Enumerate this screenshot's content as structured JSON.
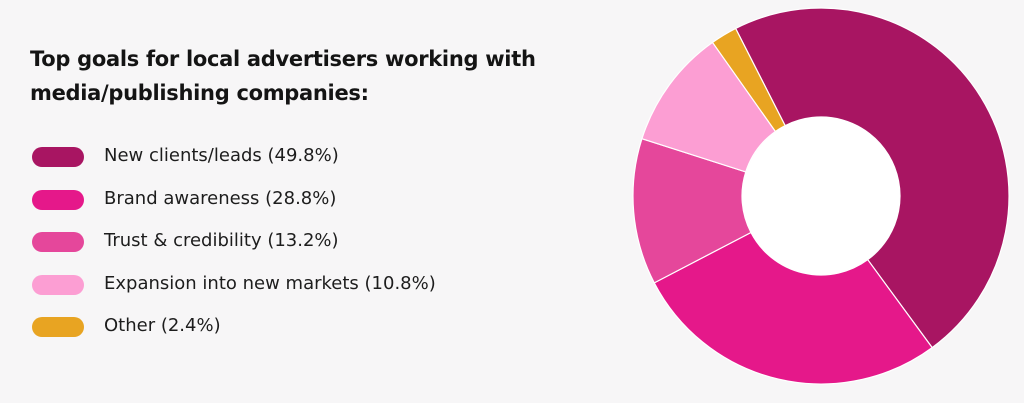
{
  "title": "Top goals for local advertisers working with media/publishing companies:",
  "chart_data": {
    "type": "pie",
    "donut": true,
    "categories": [
      "New clients/leads",
      "Brand awareness",
      "Trust & credibility",
      "Expansion into new markets",
      "Other"
    ],
    "values": [
      49.8,
      28.8,
      13.2,
      10.8,
      2.4
    ],
    "colors": [
      "#a81562",
      "#e5188a",
      "#e5479b",
      "#fc9ed3",
      "#e8a422"
    ],
    "legend_labels": [
      "New clients/leads (49.8%)",
      "Brand awareness (28.8%)",
      "Trust & credibility (13.2%)",
      "Expansion into new markets (10.8%)",
      "Other (2.4%)"
    ],
    "legend_position": "left"
  }
}
